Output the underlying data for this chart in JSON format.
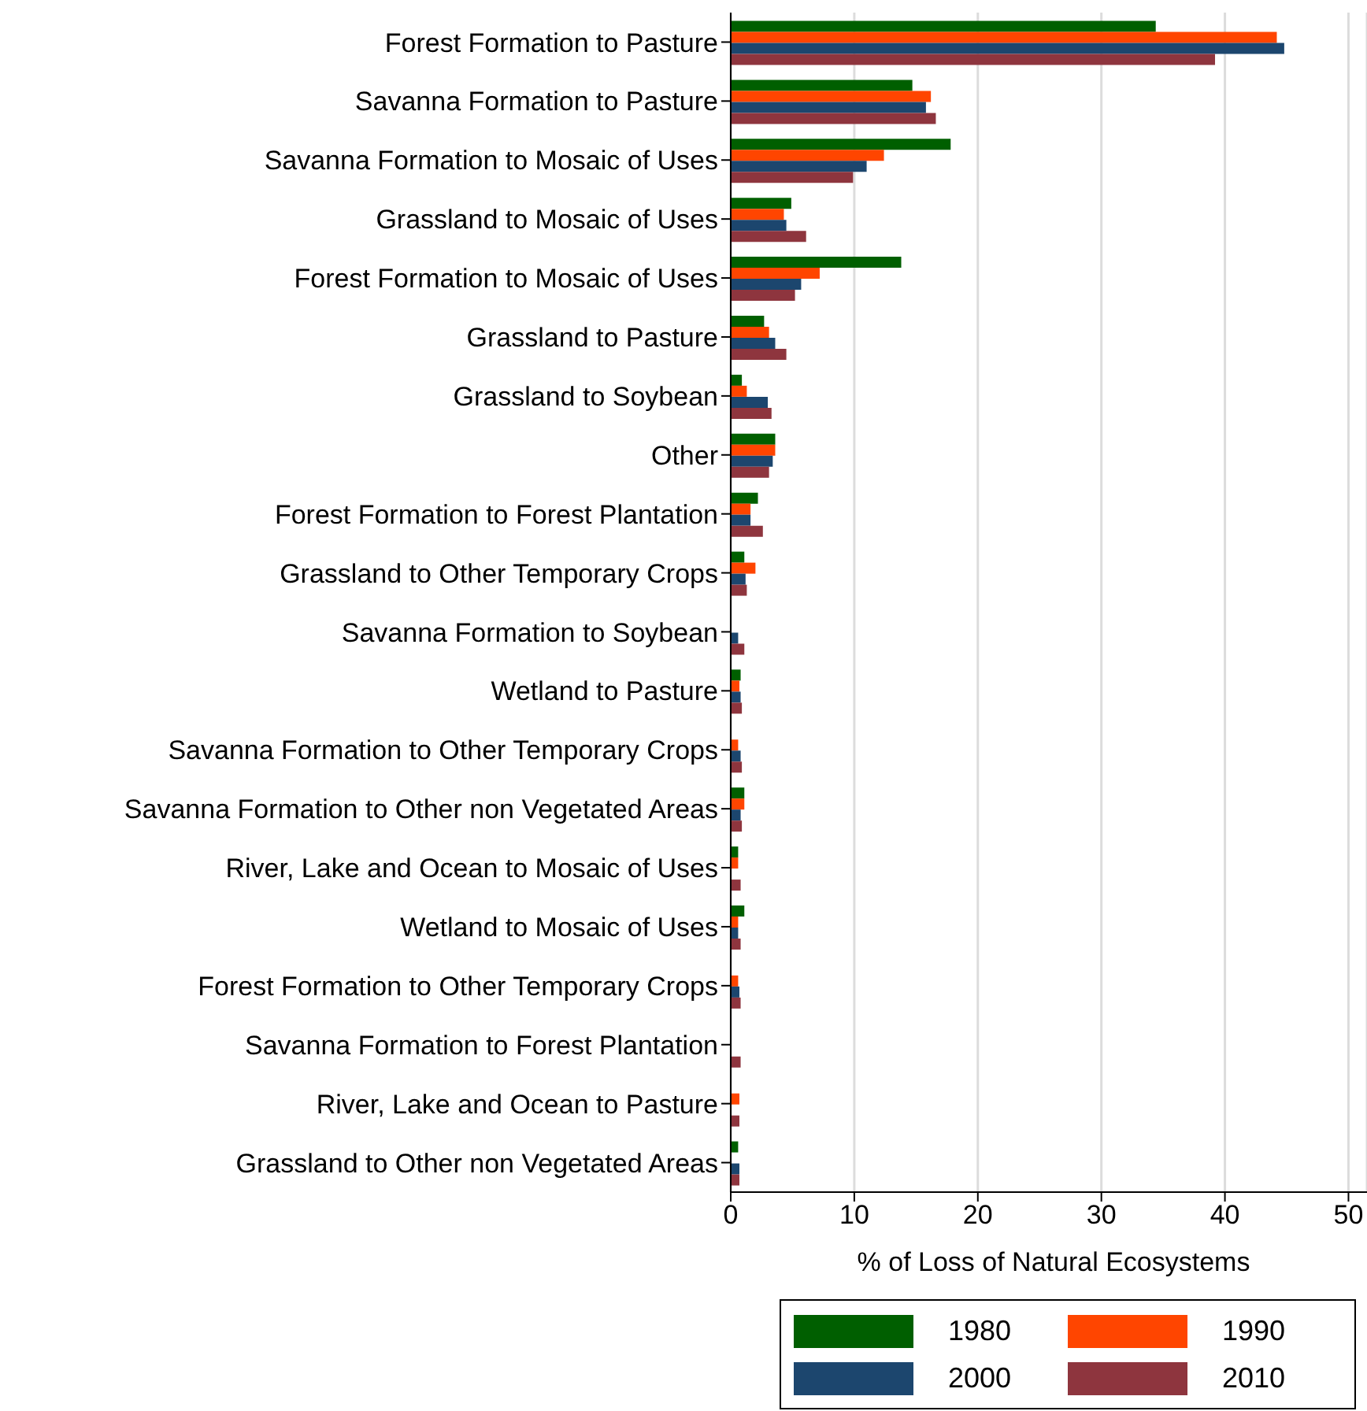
{
  "chart_data": {
    "type": "bar",
    "orientation": "horizontal",
    "xlabel": "% of Loss of Natural Ecosystems",
    "categories": [
      "Forest Formation to Pasture",
      "Savanna Formation to Pasture",
      "Savanna Formation to Mosaic of Uses",
      "Grassland to Mosaic of Uses",
      "Forest Formation to Mosaic of Uses",
      "Grassland to Pasture",
      "Grassland to Soybean",
      "Other",
      "Forest Formation to Forest Plantation",
      "Grassland to Other Temporary Crops",
      "Savanna Formation to Soybean",
      "Wetland to Pasture",
      "Savanna Formation to Other Temporary Crops",
      "Savanna Formation to Other non Vegetated Areas",
      "River, Lake and Ocean to Mosaic of Uses",
      "Wetland to Mosaic of Uses",
      "Forest Formation to Other Temporary Crops",
      "Savanna Formation to Forest Plantation",
      "River, Lake and Ocean to Pasture",
      "Grassland to Other non Vegetated Areas"
    ],
    "series": [
      {
        "name": "1980",
        "color": "#005f00",
        "values": [
          34.4,
          14.7,
          17.8,
          4.9,
          13.8,
          2.7,
          0.9,
          3.6,
          2.2,
          1.1,
          null,
          0.8,
          null,
          1.1,
          0.6,
          1.1,
          null,
          null,
          null,
          0.6
        ]
      },
      {
        "name": "1990",
        "color": "#ff4500",
        "values": [
          44.2,
          16.2,
          12.4,
          4.3,
          7.2,
          3.1,
          1.3,
          3.6,
          1.6,
          2.0,
          null,
          0.7,
          0.6,
          1.1,
          0.6,
          0.6,
          0.6,
          null,
          0.7,
          null
        ]
      },
      {
        "name": "2000",
        "color": "#1c466e",
        "values": [
          44.8,
          15.8,
          11.0,
          4.5,
          5.7,
          3.6,
          3.0,
          3.4,
          1.6,
          1.2,
          0.6,
          0.8,
          0.8,
          0.8,
          null,
          0.6,
          0.7,
          null,
          null,
          0.7
        ]
      },
      {
        "name": "2010",
        "color": "#8e353e",
        "values": [
          39.2,
          16.6,
          9.9,
          6.1,
          5.2,
          4.5,
          3.3,
          3.1,
          2.6,
          1.3,
          1.1,
          0.9,
          0.9,
          0.9,
          0.8,
          0.8,
          0.8,
          0.8,
          0.7,
          0.7
        ]
      }
    ],
    "xlim": [
      0,
      51.5
    ],
    "xticks": [
      0,
      10,
      20,
      30,
      40,
      50
    ],
    "grid": "x",
    "legend": "bottom"
  }
}
